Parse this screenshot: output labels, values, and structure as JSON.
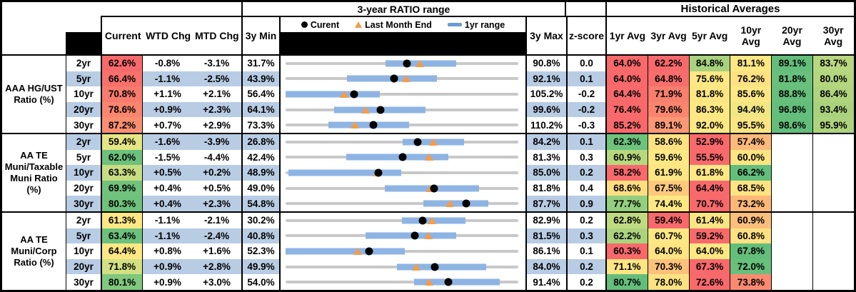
{
  "header": {
    "range_title": "3-year RATIO range",
    "historical_title": "Historical Averages",
    "col_current": "Current",
    "col_wtd": "WTD Chg",
    "col_mtd": "MTD Chg",
    "col_min": "3y Min",
    "col_max": "3y Max",
    "col_z": "z-score",
    "avg_cols": [
      "1yr Avg",
      "3yr Avg",
      "5yr Avg",
      "10yr Avg",
      "20yr Avg",
      "30yr Avg"
    ],
    "legend": {
      "current": "Curent",
      "last_month": "Last Month End",
      "range": "1yr range"
    }
  },
  "colors": {
    "stripe_blue": "#b8cce4",
    "bar_blue": "#8eb4e3",
    "legend_bar_blue": "#6b9bd2",
    "track_gray": "#c8c8c8",
    "triangle_orange": "#f59b49",
    "dot_black": "#000000",
    "heat_red": "#f8696b",
    "heat_yellow": "#ffe884",
    "heat_green": "#63be7b"
  },
  "chart_data": {
    "type": "table",
    "subtype": "range strip-plot per row (3y Min to 3y Max scale) with heatmap cells; values in ratio %",
    "row_marker_meaning": {
      "dot": "Current",
      "triangle": "Last Month End",
      "bar": "1yr range",
      "track": "3y range"
    },
    "groups": [
      {
        "label_lines": [
          "AAA HG/UST",
          "Ratio (%)"
        ],
        "rows": [
          {
            "tenor": "2yr",
            "current": 62.6,
            "current_bg": "#f8696b",
            "wtd": "-0.8%",
            "mtd": "-3.1%",
            "min": 31.7,
            "max": 90.8,
            "bar": [
              57.1,
              75.0
            ],
            "lme": 65.7,
            "z": "0.0",
            "avgs": [
              {
                "v": "64.0%",
                "bg": "#f8696b"
              },
              {
                "v": "62.2%",
                "bg": "#f8696b"
              },
              {
                "v": "84.8%",
                "bg": "#a8d27f"
              },
              {
                "v": "81.1%",
                "bg": "#ffe784"
              },
              {
                "v": "89.1%",
                "bg": "#63be7b"
              },
              {
                "v": "83.7%",
                "bg": "#b9d780"
              }
            ]
          },
          {
            "tenor": "5yr",
            "current": 66.4,
            "current_bg": "#f8716c",
            "wtd": "-1.1%",
            "mtd": "-2.5%",
            "min": 43.9,
            "max": 92.1,
            "bar": [
              56.6,
              75.3
            ],
            "lme": 68.9,
            "z": "0.1",
            "avgs": [
              {
                "v": "64.0%",
                "bg": "#f8696b"
              },
              {
                "v": "64.8%",
                "bg": "#f76e6c"
              },
              {
                "v": "75.6%",
                "bg": "#ffe884"
              },
              {
                "v": "76.2%",
                "bg": "#fee182"
              },
              {
                "v": "81.8%",
                "bg": "#68c07c"
              },
              {
                "v": "80.0%",
                "bg": "#b4d67f"
              }
            ]
          },
          {
            "tenor": "10yr",
            "current": 70.8,
            "current_bg": "#f87b6e",
            "wtd": "+1.1%",
            "mtd": "+2.1%",
            "min": 56.4,
            "max": 105.2,
            "bar": [
              56.4,
              76.1
            ],
            "lme": 68.7,
            "z": "-0.2",
            "avgs": [
              {
                "v": "64.4%",
                "bg": "#f8696b"
              },
              {
                "v": "71.9%",
                "bg": "#f87e6e"
              },
              {
                "v": "81.8%",
                "bg": "#fde682"
              },
              {
                "v": "85.6%",
                "bg": "#ffe884"
              },
              {
                "v": "88.8%",
                "bg": "#66bf7b"
              },
              {
                "v": "86.4%",
                "bg": "#b0d47e"
              }
            ]
          },
          {
            "tenor": "20yr",
            "current": 78.6,
            "current_bg": "#f9856f",
            "wtd": "+0.9%",
            "mtd": "+2.3%",
            "min": 64.1,
            "max": 99.6,
            "bar": [
              71.5,
              85.4
            ],
            "lme": 76.3,
            "z": "-0.2",
            "avgs": [
              {
                "v": "76.4%",
                "bg": "#f8696b"
              },
              {
                "v": "79.6%",
                "bg": "#f9856f"
              },
              {
                "v": "86.3%",
                "bg": "#ffe884"
              },
              {
                "v": "94.4%",
                "bg": "#f0e684"
              },
              {
                "v": "96.8%",
                "bg": "#63be7b"
              },
              {
                "v": "93.4%",
                "bg": "#aad27e"
              }
            ]
          },
          {
            "tenor": "30yr",
            "current": 87.2,
            "current_bg": "#f98f71",
            "wtd": "+0.7%",
            "mtd": "+2.9%",
            "min": 73.3,
            "max": 110.2,
            "bar": [
              80.1,
              92.9
            ],
            "lme": 84.3,
            "z": "-0.3",
            "avgs": [
              {
                "v": "85.2%",
                "bg": "#f8696b"
              },
              {
                "v": "89.1%",
                "bg": "#fa9876"
              },
              {
                "v": "92.0%",
                "bg": "#ffe884"
              },
              {
                "v": "95.5%",
                "bg": "#fbe483"
              },
              {
                "v": "98.6%",
                "bg": "#63be7b"
              },
              {
                "v": "95.9%",
                "bg": "#add37e"
              }
            ]
          }
        ]
      },
      {
        "label_lines": [
          "AA TE",
          "Muni/Taxable",
          "Muni Ratio",
          "(%)"
        ],
        "rows": [
          {
            "tenor": "2yr",
            "current": 59.4,
            "current_bg": "#e5e684",
            "wtd": "-1.6%",
            "mtd": "-3.9%",
            "min": 26.8,
            "max": 84.2,
            "bar": [
              55.6,
              70.8
            ],
            "lme": 63.3,
            "z": "0.1",
            "avgs": [
              {
                "v": "62.3%",
                "bg": "#6dc27c"
              },
              {
                "v": "58.6%",
                "bg": "#fee182"
              },
              {
                "v": "52.9%",
                "bg": "#f8696b"
              },
              {
                "v": "57.4%",
                "bg": "#fbb97a"
              },
              null,
              null
            ]
          },
          {
            "tenor": "5yr",
            "current": 62.0,
            "current_bg": "#6cc17c",
            "wtd": "-1.5%",
            "mtd": "-4.4%",
            "min": 42.4,
            "max": 81.3,
            "bar": [
              52.5,
              69.6
            ],
            "lme": 66.4,
            "z": "0.3",
            "avgs": [
              {
                "v": "60.9%",
                "bg": "#b8d87f"
              },
              {
                "v": "59.6%",
                "bg": "#ffe884"
              },
              {
                "v": "55.5%",
                "bg": "#f8696b"
              },
              {
                "v": "60.0%",
                "bg": "#fee482"
              },
              null,
              null
            ]
          },
          {
            "tenor": "10yr",
            "current": 63.3,
            "current_bg": "#c8dd82",
            "wtd": "+0.5%",
            "mtd": "+0.2%",
            "min": 48.9,
            "max": 85.0,
            "bar": [
              49.3,
              66.8
            ],
            "lme": 63.1,
            "z": "0.2",
            "avgs": [
              {
                "v": "58.2%",
                "bg": "#f8696b"
              },
              {
                "v": "61.9%",
                "bg": "#fce583"
              },
              {
                "v": "61.8%",
                "bg": "#ffe884"
              },
              {
                "v": "66.2%",
                "bg": "#63be7b"
              },
              null,
              null
            ]
          },
          {
            "tenor": "20yr",
            "current": 69.9,
            "current_bg": "#70c27c",
            "wtd": "+0.4%",
            "mtd": "+0.5%",
            "min": 49.0,
            "max": 81.8,
            "bar": [
              63.0,
              76.3
            ],
            "lme": 69.4,
            "z": "0.4",
            "avgs": [
              {
                "v": "68.6%",
                "bg": "#fede81"
              },
              {
                "v": "67.5%",
                "bg": "#fcc97d"
              },
              {
                "v": "64.4%",
                "bg": "#f8696b"
              },
              {
                "v": "68.5%",
                "bg": "#fee382"
              },
              null,
              null
            ]
          },
          {
            "tenor": "30yr",
            "current": 80.3,
            "current_bg": "#6fc27c",
            "wtd": "+0.4%",
            "mtd": "+2.3%",
            "min": 54.8,
            "max": 87.7,
            "bar": [
              74.3,
              83.5
            ],
            "lme": 78.0,
            "z": "0.9",
            "avgs": [
              {
                "v": "77.7%",
                "bg": "#93cf7e"
              },
              {
                "v": "74.4%",
                "bg": "#ffe884"
              },
              {
                "v": "70.7%",
                "bg": "#f8696b"
              },
              {
                "v": "73.2%",
                "bg": "#fbb878"
              },
              null,
              null
            ]
          }
        ]
      },
      {
        "label_lines": [
          "AA TE",
          "Muni/Corp",
          "Ratio (%)"
        ],
        "rows": [
          {
            "tenor": "2yr",
            "current": 61.3,
            "current_bg": "#ffe884",
            "wtd": "-1.1%",
            "mtd": "-2.1%",
            "min": 30.2,
            "max": 82.9,
            "bar": [
              56.6,
              70.9
            ],
            "lme": 63.4,
            "z": "0.2",
            "avgs": [
              {
                "v": "62.8%",
                "bg": "#c0da80"
              },
              {
                "v": "59.4%",
                "bg": "#f8696b"
              },
              {
                "v": "61.4%",
                "bg": "#fbe583"
              },
              {
                "v": "60.9%",
                "bg": "#fcbe7b"
              },
              null,
              null
            ]
          },
          {
            "tenor": "5yr",
            "current": 63.4,
            "current_bg": "#6cc17c",
            "wtd": "-1.1%",
            "mtd": "-2.4%",
            "min": 40.8,
            "max": 81.5,
            "bar": [
              54.8,
              70.6
            ],
            "lme": 65.8,
            "z": "0.3",
            "avgs": [
              {
                "v": "62.2%",
                "bg": "#abd37e"
              },
              {
                "v": "60.7%",
                "bg": "#ffe884"
              },
              {
                "v": "59.2%",
                "bg": "#f8696b"
              },
              {
                "v": "60.8%",
                "bg": "#fee182"
              },
              null,
              null
            ]
          },
          {
            "tenor": "10yr",
            "current": 64.4,
            "current_bg": "#ffe884",
            "wtd": "+0.8%",
            "mtd": "+1.6%",
            "min": 52.3,
            "max": 86.1,
            "bar": [
              52.3,
              69.6
            ],
            "lme": 62.8,
            "z": "0.1",
            "avgs": [
              {
                "v": "60.3%",
                "bg": "#f8696b"
              },
              {
                "v": "64.0%",
                "bg": "#fee482"
              },
              {
                "v": "64.0%",
                "bg": "#ffe884"
              },
              {
                "v": "67.8%",
                "bg": "#63be7b"
              },
              null,
              null
            ]
          },
          {
            "tenor": "20yr",
            "current": 71.8,
            "current_bg": "#d2e082",
            "wtd": "+0.9%",
            "mtd": "+2.8%",
            "min": 49.9,
            "max": 84.0,
            "bar": [
              66.2,
              79.3
            ],
            "lme": 69.0,
            "z": "0.2",
            "avgs": [
              {
                "v": "71.1%",
                "bg": "#fee583"
              },
              {
                "v": "70.3%",
                "bg": "#fcc17b"
              },
              {
                "v": "67.3%",
                "bg": "#f8696b"
              },
              {
                "v": "72.0%",
                "bg": "#68c07b"
              },
              null,
              null
            ]
          },
          {
            "tenor": "30yr",
            "current": 80.1,
            "current_bg": "#7fc87d",
            "wtd": "+0.9%",
            "mtd": "+3.0%",
            "min": 54.0,
            "max": 91.4,
            "bar": [
              74.7,
              88.4
            ],
            "lme": 77.1,
            "z": "0.2",
            "avgs": [
              {
                "v": "80.7%",
                "bg": "#63be7b"
              },
              {
                "v": "78.0%",
                "bg": "#fee282"
              },
              {
                "v": "72.6%",
                "bg": "#f8696b"
              },
              {
                "v": "73.8%",
                "bg": "#f98a70"
              },
              null,
              null
            ]
          }
        ]
      }
    ]
  }
}
